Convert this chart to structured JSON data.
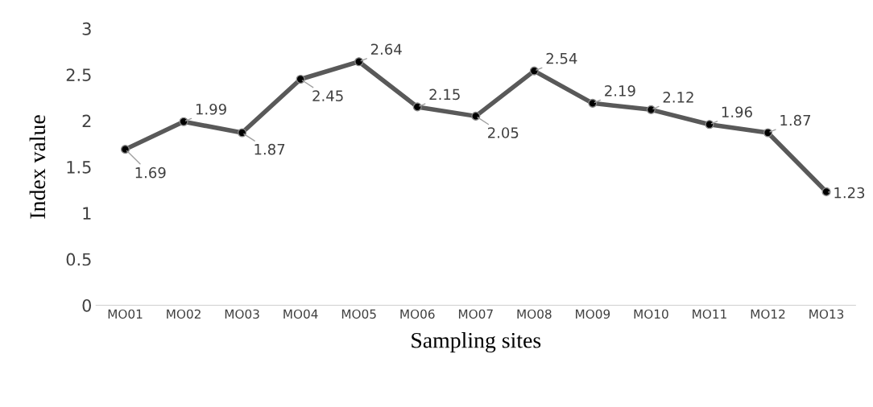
{
  "chart_data": {
    "type": "line",
    "xlabel": "Sampling sites",
    "ylabel": "Index value",
    "categories": [
      "MO01",
      "MO02",
      "MO03",
      "MO04",
      "MO05",
      "MO06",
      "MO07",
      "MO08",
      "MO09",
      "MO10",
      "MO11",
      "MO12",
      "MO13"
    ],
    "series": [
      {
        "color": "#595959",
        "values": [
          1.69,
          1.99,
          1.87,
          2.45,
          2.64,
          2.15,
          2.05,
          2.54,
          2.19,
          2.12,
          1.96,
          1.87,
          1.23
        ]
      }
    ],
    "ylim": [
      0,
      3
    ],
    "yticks": [
      0,
      0.5,
      1,
      1.5,
      2,
      2.5,
      3
    ],
    "marker": "circle",
    "line_style": "solid",
    "data_labels": true,
    "grid": false,
    "legend": false
  }
}
